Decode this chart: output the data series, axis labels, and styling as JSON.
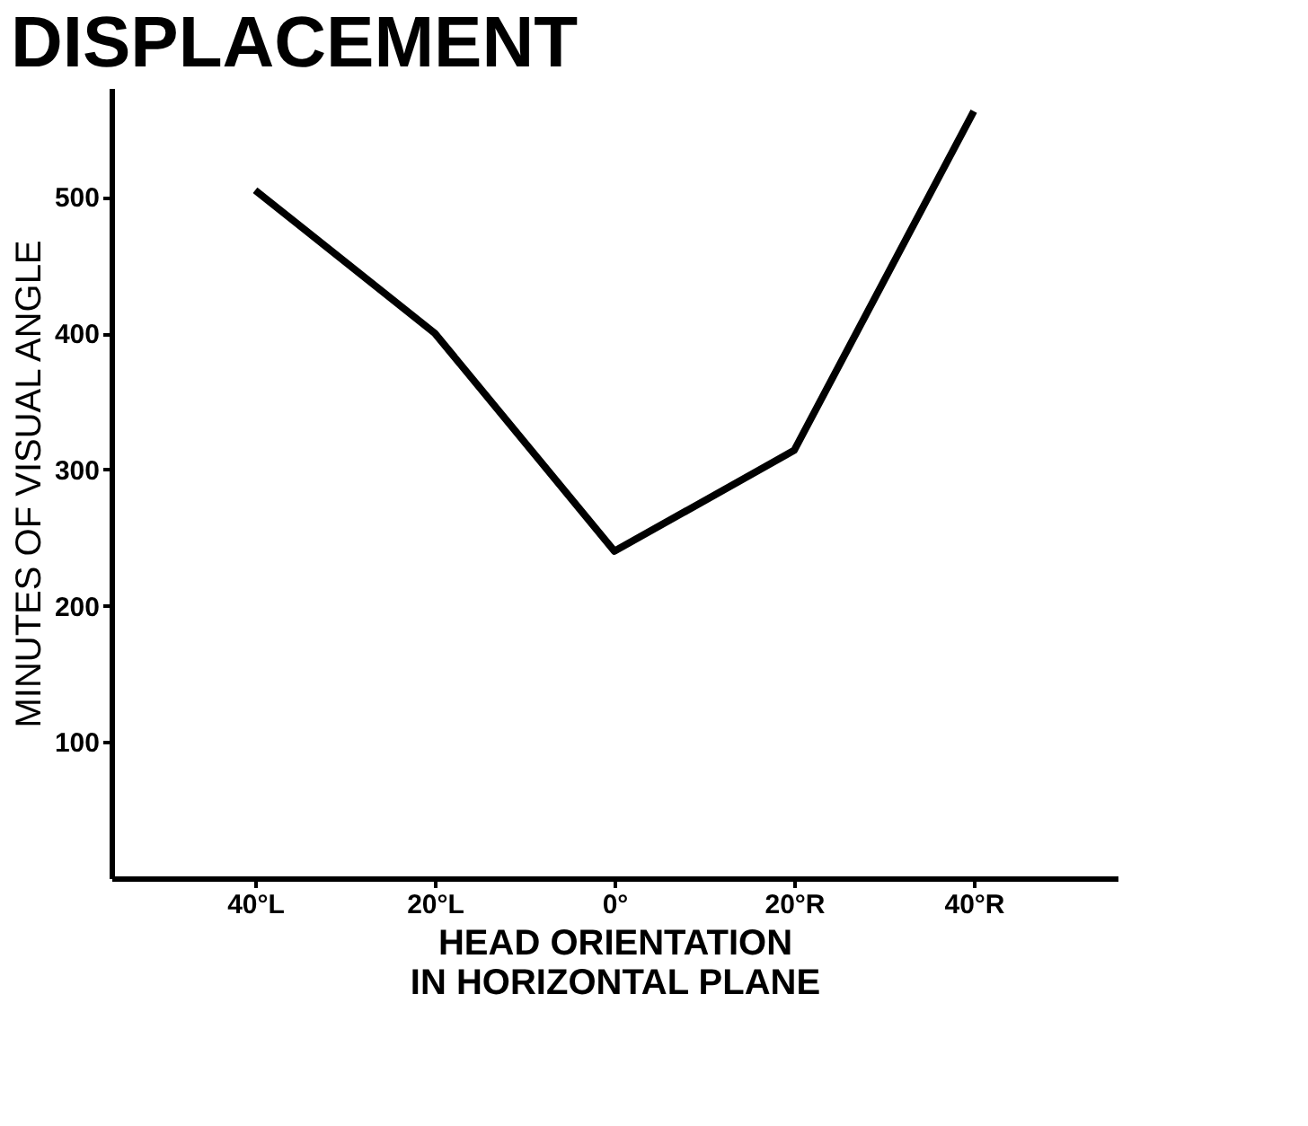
{
  "chart_data": {
    "type": "line",
    "title": "DISPLACEMENT",
    "xlabel": "HEAD ORIENTATION\nIN HORIZONTAL PLANE",
    "ylabel": "MINUTES OF VISUAL ANGLE",
    "categories": [
      "40°L",
      "20°L",
      "0°",
      "20°R",
      "40°R"
    ],
    "series": [
      {
        "color": "#000000",
        "values": [
          505,
          400,
          240,
          314,
          563
        ]
      }
    ],
    "ylim": [
      0,
      580
    ],
    "yticks": [
      100,
      200,
      300,
      400,
      500
    ],
    "grid": false,
    "marker": "none",
    "line_style": "solid"
  }
}
